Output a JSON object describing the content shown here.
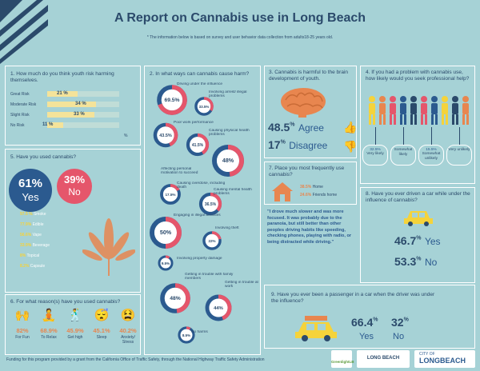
{
  "header": {
    "title": "A Report on Cannabis use in Long Beach",
    "subtitle": "* The information below is based on survey and user behavior data collection from adults18-25 years old."
  },
  "q1": {
    "title": "1. How much do you think youth risk harming themselves.",
    "rows": [
      {
        "label": "Great Risk",
        "value": "21 %",
        "fraction": 0.21
      },
      {
        "label": "Moderate Risk",
        "value": "34 %",
        "fraction": 0.34
      },
      {
        "label": "Slight Risk",
        "value": "33 %",
        "fraction": 0.33
      },
      {
        "label": "No Risk",
        "value": "11 %",
        "fraction": 0.11
      }
    ],
    "axis_unit": "%"
  },
  "q5": {
    "title": "5. Have you used cannabis?",
    "yes_pct": "61%",
    "yes_label": "Yes",
    "no_pct": "39%",
    "no_label": "No",
    "methods": [
      {
        "value": "97.5 %",
        "label": "Smoke"
      },
      {
        "value": "77.9%",
        "label": "Edible"
      },
      {
        "value": "56.6%",
        "label": "Vape"
      },
      {
        "value": "33.9%",
        "label": "Beverage"
      },
      {
        "value": "8%",
        "label": "Topical"
      },
      {
        "value": "8.2%",
        "label": "Capsule"
      }
    ]
  },
  "q6": {
    "title": "6. For what reason(s) have you used cannabis?",
    "reasons": [
      {
        "value": "82%",
        "label": "For Fun"
      },
      {
        "value": "68.9%",
        "label": "To Relax"
      },
      {
        "value": "45.9%",
        "label": "Get high"
      },
      {
        "value": "45.1%",
        "label": "Sleep"
      },
      {
        "value": "40.2%",
        "label": "Anxiety/ Stress"
      }
    ]
  },
  "q2": {
    "title": "2. In what ways can cannabis cause harm?",
    "items": [
      {
        "value": "69.5%",
        "label": "Driving under the influence",
        "fraction": 0.695
      },
      {
        "value": "33.5%",
        "label": "Involving arrest/ illegal problems",
        "fraction": 0.335
      },
      {
        "value": "43.5%",
        "label": "Poor work performance",
        "fraction": 0.435
      },
      {
        "value": "41.5%",
        "label": "Causing physical health problems",
        "fraction": 0.415
      },
      {
        "value": "48%",
        "label": "Affecting personal motivation to succeed",
        "fraction": 0.48
      },
      {
        "value": "17.5%",
        "label": "Causing overdose, including death",
        "fraction": 0.175
      },
      {
        "value": "36.5%",
        "label": "Causing mental health problems",
        "fraction": 0.365
      },
      {
        "value": "50%",
        "label": "Engaging in illegal activities",
        "fraction": 0.5
      },
      {
        "value": "22%",
        "label": "Involving theft",
        "fraction": 0.22
      },
      {
        "value": "9.5%",
        "label": "Involving property damage",
        "fraction": 0.095
      },
      {
        "value": "48%",
        "label": "Getting in trouble with family members",
        "fraction": 0.48
      },
      {
        "value": "44%",
        "label": "Getting in trouble at work",
        "fraction": 0.44
      },
      {
        "value": "8.5%",
        "label": "No harms",
        "fraction": 0.085
      }
    ]
  },
  "q3": {
    "title": "3. Cannabis is harmful to the brain development of youth.",
    "agree_value": "48.5",
    "agree_unit": "%",
    "agree_label": "Agree",
    "disagree_value": "17",
    "disagree_unit": "%",
    "disagree_label": "Disagree"
  },
  "q7": {
    "title": "7. Place you most frequently use cannabis?",
    "home_value": "38.5%",
    "home_label": "Home",
    "friends_value": "24.6%",
    "friends_label": "Friends home"
  },
  "quote": {
    "text": "\"I drove much slower and was more focused. It was probably due to the paranoia, but still better than other peoples driving habits like speeding, checking phones, playing with radio, or being distracted while driving.\""
  },
  "q4": {
    "title": "4. If you had a problem with cannabis use, how likely would you seek professional help?",
    "options": [
      {
        "value": "32.5%",
        "label": "Very likely"
      },
      {
        "value": "",
        "label": "Somewhat likely"
      },
      {
        "value": "15.5%",
        "label": "Somewhat unlikely"
      },
      {
        "value": "",
        "label": "Very unlikely"
      }
    ]
  },
  "q8": {
    "title": "8. Have you ever driven a car while under the influence of cannabis?",
    "yes_value": "46.7",
    "yes_unit": "%",
    "yes_label": "Yes",
    "no_value": "53.3",
    "no_unit": "%",
    "no_label": "No"
  },
  "q9": {
    "title": "9. Have you ever been a passenger in a car when the driver was under the influence?",
    "yes_value": "66.4",
    "yes_unit": "%",
    "yes_label": "Yes",
    "no_value": "32",
    "no_unit": "%",
    "no_label": "No"
  },
  "footer": {
    "text": "Funding for this program provided by a grant from the California Office of Traffic Safety, through the National Highway Traffic Safety Administration",
    "logo1": "GreenlightLB",
    "logo2": "LONG BEACH",
    "logo3_top": "CITY OF",
    "logo3": "LONGBEACH"
  },
  "colors": {
    "navy": "#2b4a6b",
    "blue": "#2b5a8f",
    "coral": "#e5566b",
    "orange": "#e8864f",
    "yellow": "#f5d33b",
    "teal_bg": "#a6d2d6"
  }
}
